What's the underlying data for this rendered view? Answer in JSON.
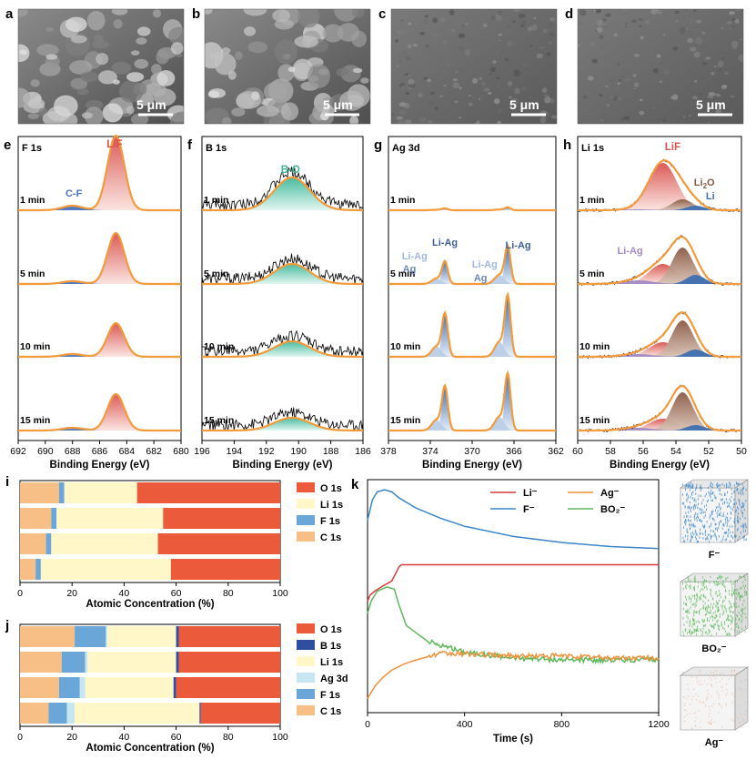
{
  "colors": {
    "liF": "#d9534f",
    "cf": "#4a73b8",
    "bo": "#3fb89a",
    "ag": "#3e6fb0",
    "li2o": "#8a5a44",
    "fit": "#f39a3a",
    "spec": "#111111",
    "o": "#ea5a3b",
    "b": "#2f4ea0",
    "li": "#fff7c8",
    "ag3d": "#c6e6f2",
    "f": "#6aa6d8",
    "c": "#f7bf85",
    "green": "#5cb85c",
    "orange": "#f0913a",
    "red": "#d43a3a",
    "blue": "#3a86c8"
  },
  "sem": {
    "labels": [
      "a",
      "b",
      "c",
      "d"
    ],
    "scale": "5 μm"
  },
  "xps": [
    {
      "panel": "e",
      "core": "F 1s",
      "xmin": 680,
      "xmax": 692,
      "ticks": [
        692,
        690,
        688,
        686,
        684,
        682,
        680
      ],
      "xlabel": "Binding Energy (eV)",
      "times": [
        "1 min",
        "5 min",
        "10 min",
        "15 min"
      ],
      "annotations": [
        {
          "text": "LiF",
          "color": "#d9534f"
        },
        {
          "text": "C-F",
          "color": "#4a73b8"
        }
      ]
    },
    {
      "panel": "f",
      "core": "B 1s",
      "xmin": 186,
      "xmax": 196,
      "ticks": [
        196,
        194,
        192,
        190,
        188,
        186
      ],
      "xlabel": "Binding Energy (eV)",
      "times": [
        "1 min",
        "5 min",
        "10 min",
        "15 min"
      ],
      "annotations": [
        {
          "text": "B-O",
          "color": "#3fb89a"
        }
      ]
    },
    {
      "panel": "g",
      "core": "Ag 3d",
      "xmin": 362,
      "xmax": 378,
      "ticks": [
        378,
        374,
        370,
        366,
        362
      ],
      "xlabel": "Binding Energy (eV)",
      "times": [
        "1 min",
        "5 min",
        "10 min",
        "15 min"
      ],
      "annotations": [
        {
          "text": "Li-Ag",
          "color": "#9fb7d8"
        },
        {
          "text": "Ag",
          "color": "#6b87b8"
        },
        {
          "text": "Li-Ag",
          "color": "#3e5f9a"
        },
        {
          "text": "Ag",
          "color": "#6b87b8"
        },
        {
          "text": "Li-Ag",
          "color": "#9fb7d8"
        },
        {
          "text": "Li-Ag",
          "color": "#3e5f9a"
        }
      ]
    },
    {
      "panel": "h",
      "core": "Li 1s",
      "xmin": 50,
      "xmax": 60,
      "ticks": [
        60,
        58,
        56,
        54,
        52,
        50
      ],
      "xlabel": "Binding Energy (eV)",
      "times": [
        "1 min",
        "5 min",
        "10 min",
        "15 min"
      ],
      "annotations": [
        {
          "text": "LiF",
          "color": "#d9534f"
        },
        {
          "text": "Li",
          "color": "#8a5a44"
        },
        {
          "text": "2",
          "color": "#8a5a44"
        },
        {
          "text": "O",
          "color": "#8a5a44"
        },
        {
          "text": "Li",
          "color": "#3e6fb0"
        },
        {
          "text": "Li-Ag",
          "color": "#a28ac4"
        }
      ]
    }
  ],
  "chart_data": [
    {
      "type": "bar",
      "panel": "i",
      "orientation": "horizontal-stacked",
      "xlabel": "Atomic Concentration (%)",
      "xlim": [
        0,
        100
      ],
      "ticks": [
        0,
        20,
        40,
        60,
        80,
        100
      ],
      "legend": [
        "O 1s",
        "Li 1s",
        "F 1s",
        "C 1s"
      ],
      "stack_order": [
        "C 1s",
        "F 1s",
        "Li 1s",
        "O 1s"
      ],
      "series": [
        {
          "name": "C 1s",
          "values": [
            15,
            12,
            10,
            6
          ]
        },
        {
          "name": "F 1s",
          "values": [
            2,
            2,
            2,
            2
          ]
        },
        {
          "name": "Li 1s",
          "values": [
            28,
            41,
            41,
            50
          ]
        },
        {
          "name": "O 1s",
          "values": [
            55,
            45,
            47,
            42
          ]
        }
      ]
    },
    {
      "type": "bar",
      "panel": "j",
      "orientation": "horizontal-stacked",
      "xlabel": "Atomic Concentration (%)",
      "xlim": [
        0,
        100
      ],
      "ticks": [
        0,
        20,
        40,
        60,
        80,
        100
      ],
      "legend": [
        "O 1s",
        "B 1s",
        "Li 1s",
        "Ag 3d",
        "F 1s",
        "C 1s"
      ],
      "stack_order": [
        "C 1s",
        "F 1s",
        "Ag 3d",
        "Li 1s",
        "B 1s",
        "O 1s"
      ],
      "series": [
        {
          "name": "C 1s",
          "values": [
            21,
            16,
            15,
            11
          ]
        },
        {
          "name": "F 1s",
          "values": [
            12,
            9,
            8,
            7
          ]
        },
        {
          "name": "Ag 3d",
          "values": [
            0.5,
            1,
            2,
            3
          ]
        },
        {
          "name": "Li 1s",
          "values": [
            26.5,
            34,
            34,
            48
          ]
        },
        {
          "name": "B 1s",
          "values": [
            1,
            1,
            1,
            0.5
          ]
        },
        {
          "name": "O 1s",
          "values": [
            39,
            39,
            40,
            30.5
          ]
        }
      ]
    },
    {
      "type": "line",
      "panel": "k",
      "xlabel": "Time (s)",
      "xlim": [
        0,
        1200
      ],
      "ticks": [
        0,
        400,
        800,
        1200
      ],
      "legend": [
        "Li⁻",
        "Ag⁻",
        "F⁻",
        "BO₂⁻"
      ],
      "series": [
        {
          "name": "F⁻",
          "color": "#3a86c8",
          "x": [
            0,
            20,
            40,
            70,
            100,
            130,
            200,
            300,
            400,
            600,
            800,
            1000,
            1200
          ],
          "y": [
            0.7,
            0.8,
            0.84,
            0.85,
            0.84,
            0.81,
            0.76,
            0.71,
            0.67,
            0.62,
            0.59,
            0.57,
            0.56
          ]
        },
        {
          "name": "Li⁻",
          "color": "#d43a3a",
          "x": [
            0,
            10,
            30,
            70,
            100,
            130,
            140,
            200,
            400,
            800,
            1200
          ],
          "y": [
            0.3,
            0.33,
            0.35,
            0.38,
            0.4,
            0.47,
            0.48,
            0.48,
            0.48,
            0.48,
            0.48
          ]
        },
        {
          "name": "BO₂⁻",
          "color": "#5cb85c",
          "x": [
            0,
            15,
            40,
            80,
            110,
            130,
            160,
            250,
            400,
            600,
            800,
            1000,
            1200
          ],
          "y": [
            0.24,
            0.3,
            0.35,
            0.37,
            0.36,
            0.28,
            0.18,
            0.1,
            0.05,
            0.02,
            0.01,
            0.01,
            0.01
          ]
        },
        {
          "name": "Ag⁻",
          "color": "#f0913a",
          "x": [
            0,
            30,
            60,
            100,
            150,
            200,
            260,
            300,
            400,
            600,
            800,
            1000,
            1200
          ],
          "y": [
            -0.18,
            -0.12,
            -0.08,
            -0.04,
            -0.01,
            0.01,
            0.03,
            0.04,
            0.04,
            0.03,
            0.03,
            0.02,
            0.02
          ]
        }
      ],
      "tof_labels": [
        "F⁻",
        "BO₂⁻",
        "Ag⁻"
      ]
    }
  ]
}
